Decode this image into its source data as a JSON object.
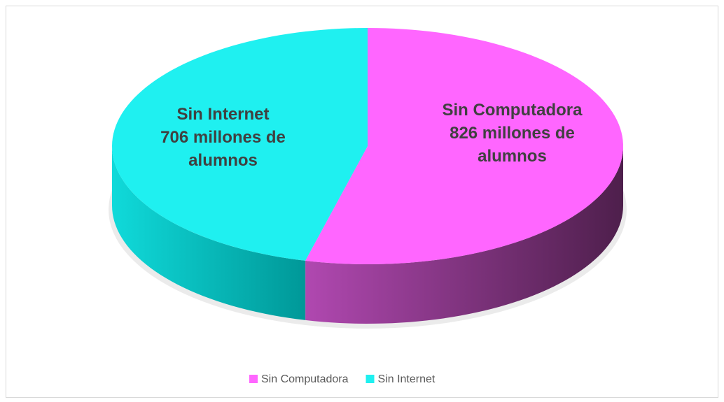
{
  "chart_data": {
    "type": "pie3d",
    "categories": [
      "Sin Computadora",
      "Sin Internet"
    ],
    "values": [
      826,
      706
    ],
    "value_labels": [
      "826 millones de alumnos",
      "706 millones de alumnos"
    ],
    "colors": [
      "#ff66ff",
      "#1ff0f0"
    ],
    "legend": "bottom"
  }
}
